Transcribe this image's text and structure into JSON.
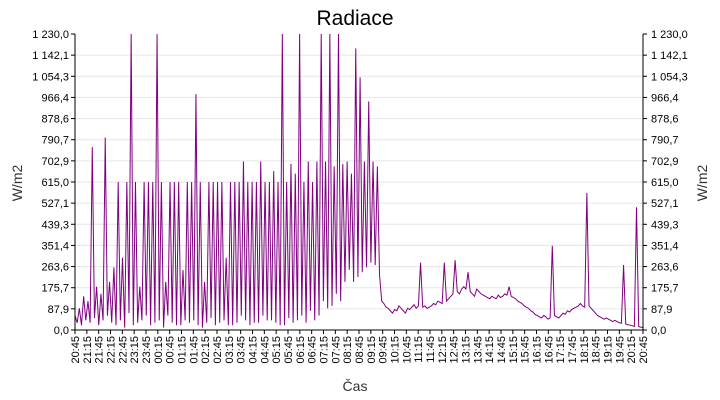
{
  "chart_data": {
    "type": "line",
    "title": "Radiace",
    "xlabel": "Čas",
    "ylabel_left": "W/m2",
    "ylabel_right": "W/m2",
    "ylim": [
      0,
      1230
    ],
    "yticks": [
      "0,0",
      "87,9",
      "175,7",
      "263,6",
      "351,4",
      "439,3",
      "527,1",
      "615,0",
      "702,9",
      "790,7",
      "878,6",
      "966,4",
      "1 054,3",
      "1 142,1",
      "1 230,0"
    ],
    "xticks": [
      "20:45",
      "21:15",
      "21:45",
      "22:15",
      "22:45",
      "23:15",
      "23:45",
      "00:15",
      "00:45",
      "01:15",
      "01:45",
      "02:15",
      "02:45",
      "03:15",
      "03:45",
      "04:15",
      "04:45",
      "05:15",
      "05:45",
      "06:15",
      "06:45",
      "07:15",
      "07:45",
      "08:15",
      "08:45",
      "09:15",
      "09:45",
      "10:15",
      "10:45",
      "11:15",
      "11:45",
      "12:15",
      "12:45",
      "13:15",
      "13:45",
      "14:15",
      "14:45",
      "15:15",
      "15:45",
      "16:15",
      "16:45",
      "17:15",
      "17:45",
      "18:15",
      "18:45",
      "19:15",
      "19:45",
      "20:15",
      "20:45"
    ],
    "grid": true,
    "line_color": "#800080",
    "series": [
      {
        "x_range": [
          "20:45",
          "20:45"
        ],
        "points_per_tick": 6,
        "values": [
          60,
          30,
          90,
          20,
          140,
          40,
          120,
          30,
          760,
          50,
          180,
          20,
          150,
          40,
          800,
          60,
          200,
          30,
          260,
          20,
          615,
          40,
          300,
          10,
          615,
          70,
          1230,
          20,
          615,
          30,
          180,
          40,
          615,
          60,
          615,
          20,
          615,
          30,
          1230,
          40,
          615,
          10,
          200,
          60,
          615,
          30,
          615,
          20,
          615,
          20,
          250,
          40,
          615,
          30,
          615,
          40,
          980,
          20,
          615,
          10,
          200,
          30,
          615,
          50,
          615,
          20,
          615,
          30,
          615,
          40,
          300,
          20,
          615,
          20,
          615,
          30,
          615,
          60,
          700,
          40,
          615,
          20,
          615,
          30,
          615,
          30,
          700,
          60,
          615,
          40,
          615,
          40,
          660,
          30,
          615,
          20,
          1230,
          20,
          615,
          50,
          690,
          30,
          650,
          40,
          1230,
          60,
          615,
          30,
          700,
          80,
          615,
          40,
          700,
          60,
          1230,
          120,
          700,
          90,
          1230,
          100,
          680,
          150,
          1230,
          120,
          690,
          200,
          700,
          250,
          650,
          200,
          1170,
          220,
          1050,
          240,
          700,
          260,
          950,
          280,
          700,
          270,
          680,
          230,
          120,
          110,
          95,
          90,
          80,
          70,
          85,
          80,
          100,
          90,
          80,
          70,
          90,
          85,
          95,
          105,
          90,
          100,
          280,
          95,
          100,
          90,
          95,
          100,
          110,
          105,
          120,
          115,
          110,
          280,
          120,
          130,
          140,
          150,
          290,
          160,
          150,
          170,
          180,
          170,
          240,
          160,
          150,
          140,
          170,
          160,
          150,
          145,
          140,
          135,
          130,
          140,
          135,
          130,
          145,
          135,
          140,
          150,
          145,
          180,
          140,
          135,
          130,
          120,
          115,
          110,
          100,
          95,
          90,
          80,
          75,
          65,
          60,
          55,
          50,
          60,
          55,
          45,
          50,
          350,
          60,
          55,
          50,
          60,
          70,
          65,
          80,
          75,
          85,
          90,
          95,
          100,
          110,
          100,
          95,
          570,
          100,
          90,
          80,
          70,
          60,
          55,
          50,
          45,
          50,
          45,
          40,
          35,
          40,
          35,
          30,
          28,
          270,
          25,
          22,
          20,
          18,
          15,
          510,
          14,
          12,
          10
        ]
      }
    ]
  }
}
